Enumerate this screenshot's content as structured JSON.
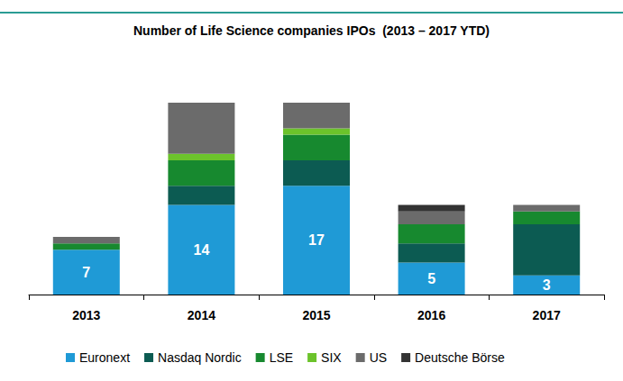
{
  "chart_data": {
    "type": "bar",
    "title": "Number of Life Science companies IPOs  (2013 – 2017 YTD)",
    "categories": [
      "2013",
      "2014",
      "2015",
      "2016",
      "2017"
    ],
    "stacked": true,
    "legend": "bottom",
    "tick_labels": "x",
    "grid": false,
    "ylim": [
      0,
      30
    ],
    "series": [
      {
        "name": "Euronext",
        "color": "#1f9ad6",
        "values": [
          7,
          14,
          17,
          5,
          3
        ],
        "data_labels": true
      },
      {
        "name": "Nasdaq Nordic",
        "color": "#0c5b52",
        "values": [
          0,
          3,
          4,
          3,
          8
        ]
      },
      {
        "name": "LSE",
        "color": "#17892f",
        "values": [
          1,
          4,
          4,
          3,
          2
        ]
      },
      {
        "name": "SIX",
        "color": "#6cc32b",
        "values": [
          0,
          1,
          1,
          0,
          0
        ]
      },
      {
        "name": "US",
        "color": "#6b6b6b",
        "values": [
          1,
          8,
          4,
          2,
          1
        ]
      },
      {
        "name": "Deutsche Börse",
        "color": "#333333",
        "values": [
          0,
          0,
          0,
          1,
          0
        ]
      }
    ]
  }
}
